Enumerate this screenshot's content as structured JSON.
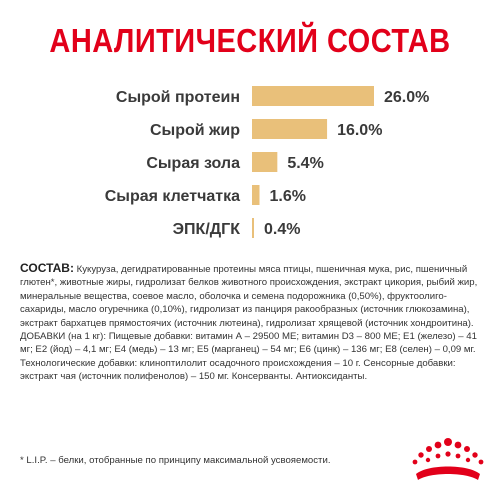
{
  "header": {
    "title": "АНАЛИТИЧЕСКИЙ СОСТАВ"
  },
  "chart_data": {
    "type": "bar",
    "orientation": "horizontal",
    "categories": [
      "Сырой протеин",
      "Сырой жир",
      "Сырая зола",
      "Сырая клетчатка",
      "ЭПК/ДГК"
    ],
    "values": [
      26.0,
      16.0,
      5.4,
      1.6,
      0.4
    ],
    "value_labels": [
      "26.0%",
      "16.0%",
      "5.4%",
      "1.6%",
      "0.4%"
    ],
    "unit": "%",
    "xlim": [
      0,
      26
    ],
    "grid": false,
    "legend": "none",
    "bar_color": "#e9c07a",
    "title": "",
    "xlabel": "",
    "ylabel": ""
  },
  "composition": {
    "label": "СОСТАВ:",
    "text": " Кукуруза, дегидратированные протеины мяса птицы, пшеничная мука, рис, пшеничный глютен*, животные жиры, гидролизат белков животного происхождения, экстракт цикория, рыбий жир, минеральные вещества, соевое масло, оболочка и семена подорожника (0,50%), фруктоолиго-сахариды, масло огуречника (0,10%), гидролизат из панциря ракообразных (источник глюкозамина), экстракт бархатцев прямостоячих (источник лютеина), гидролизат хрящевой (источник хондроитина). ДОБАВКИ (на 1 кг): Пищевые добавки: витамин А – 29500 МЕ; витамин D3 – 800 МЕ; Е1 (железо) – 41 мг; Е2 (йод) – 4,1 мг; Е4 (медь) – 13 мг; Е5 (марганец) – 54 мг; Е6 (цинк) – 136 мг; Е8 (селен) – 0,09 мг. Технологические добавки: клиноптилолит осадочного происхождения – 10 г. Сенсорные добавки: экстракт чая (источник полифенолов) – 150 мг. Консерванты. Антиоксиданты."
  },
  "footnote": {
    "text": "* L.I.P. – белки, отобранные по принципу максимальной усвояемости."
  },
  "brand": {
    "logo_icon": "royal-canin-crown-logo-icon",
    "accent_color": "#e2001a"
  }
}
